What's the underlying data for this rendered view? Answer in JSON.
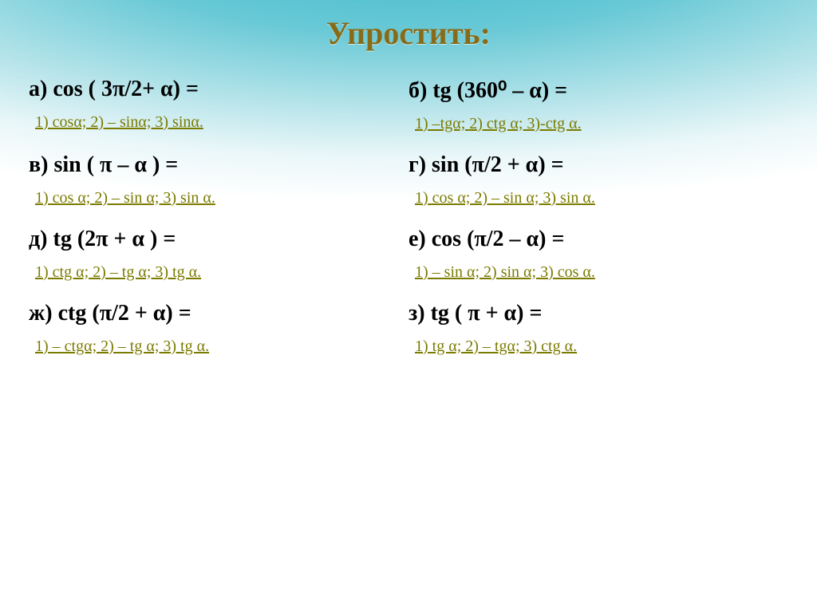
{
  "title": "Упростить:",
  "rows": [
    {
      "left": {
        "q": "а) cos ( 3π/2+ α) =",
        "opts": "1) cosα; 2) – sinα; 3) sinα."
      },
      "right": {
        "q": "б)  tg (360⁰ – α) =",
        "opts": "1) –tgα; 2) ctg α;  3)-ctg α."
      }
    },
    {
      "left": {
        "q": "в) sin ( π – α ) =",
        "opts": "1) cos α;  2) – sin α;  3) sin α."
      },
      "right": {
        "q": "г) sin (π/2 + α) =",
        "opts": "1) cos α;  2) – sin α;  3) sin α."
      }
    },
    {
      "left": {
        "q": "д) tg (2π + α ) =",
        "opts": "1) ctg α;  2) – tg α;  3) tg α."
      },
      "right": {
        "q": "е) cos (π/2 – α)  =",
        "opts": "1) – sin α;  2) sin α;  3) cos α."
      }
    },
    {
      "left": {
        "q": "ж) ctg (π/2 + α) =",
        "opts": "1) – ctgα;  2) – tg α;  3) tg α."
      },
      "right": {
        "q": "з) tg ( π + α) =",
        "opts": "1) tg α;  2) – tgα;  3) ctg α."
      }
    }
  ]
}
